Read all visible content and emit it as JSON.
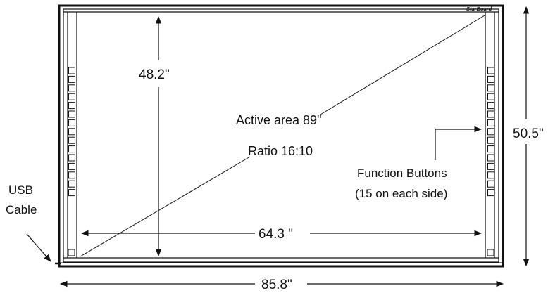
{
  "diagram": {
    "brand": "StarBoard",
    "labels": {
      "height_inner": "48.2\"",
      "active_area": "Active area 89\"",
      "ratio": "Ratio 16:10",
      "width_inner": "64.3 \"",
      "width_outer": "85.8\"",
      "height_outer": "50.5\"",
      "function_buttons_line1": "Function Buttons",
      "function_buttons_line2": "(15 on each side)",
      "usb_line1": "USB",
      "usb_line2": "Cable"
    },
    "function_buttons_per_side": 15
  }
}
